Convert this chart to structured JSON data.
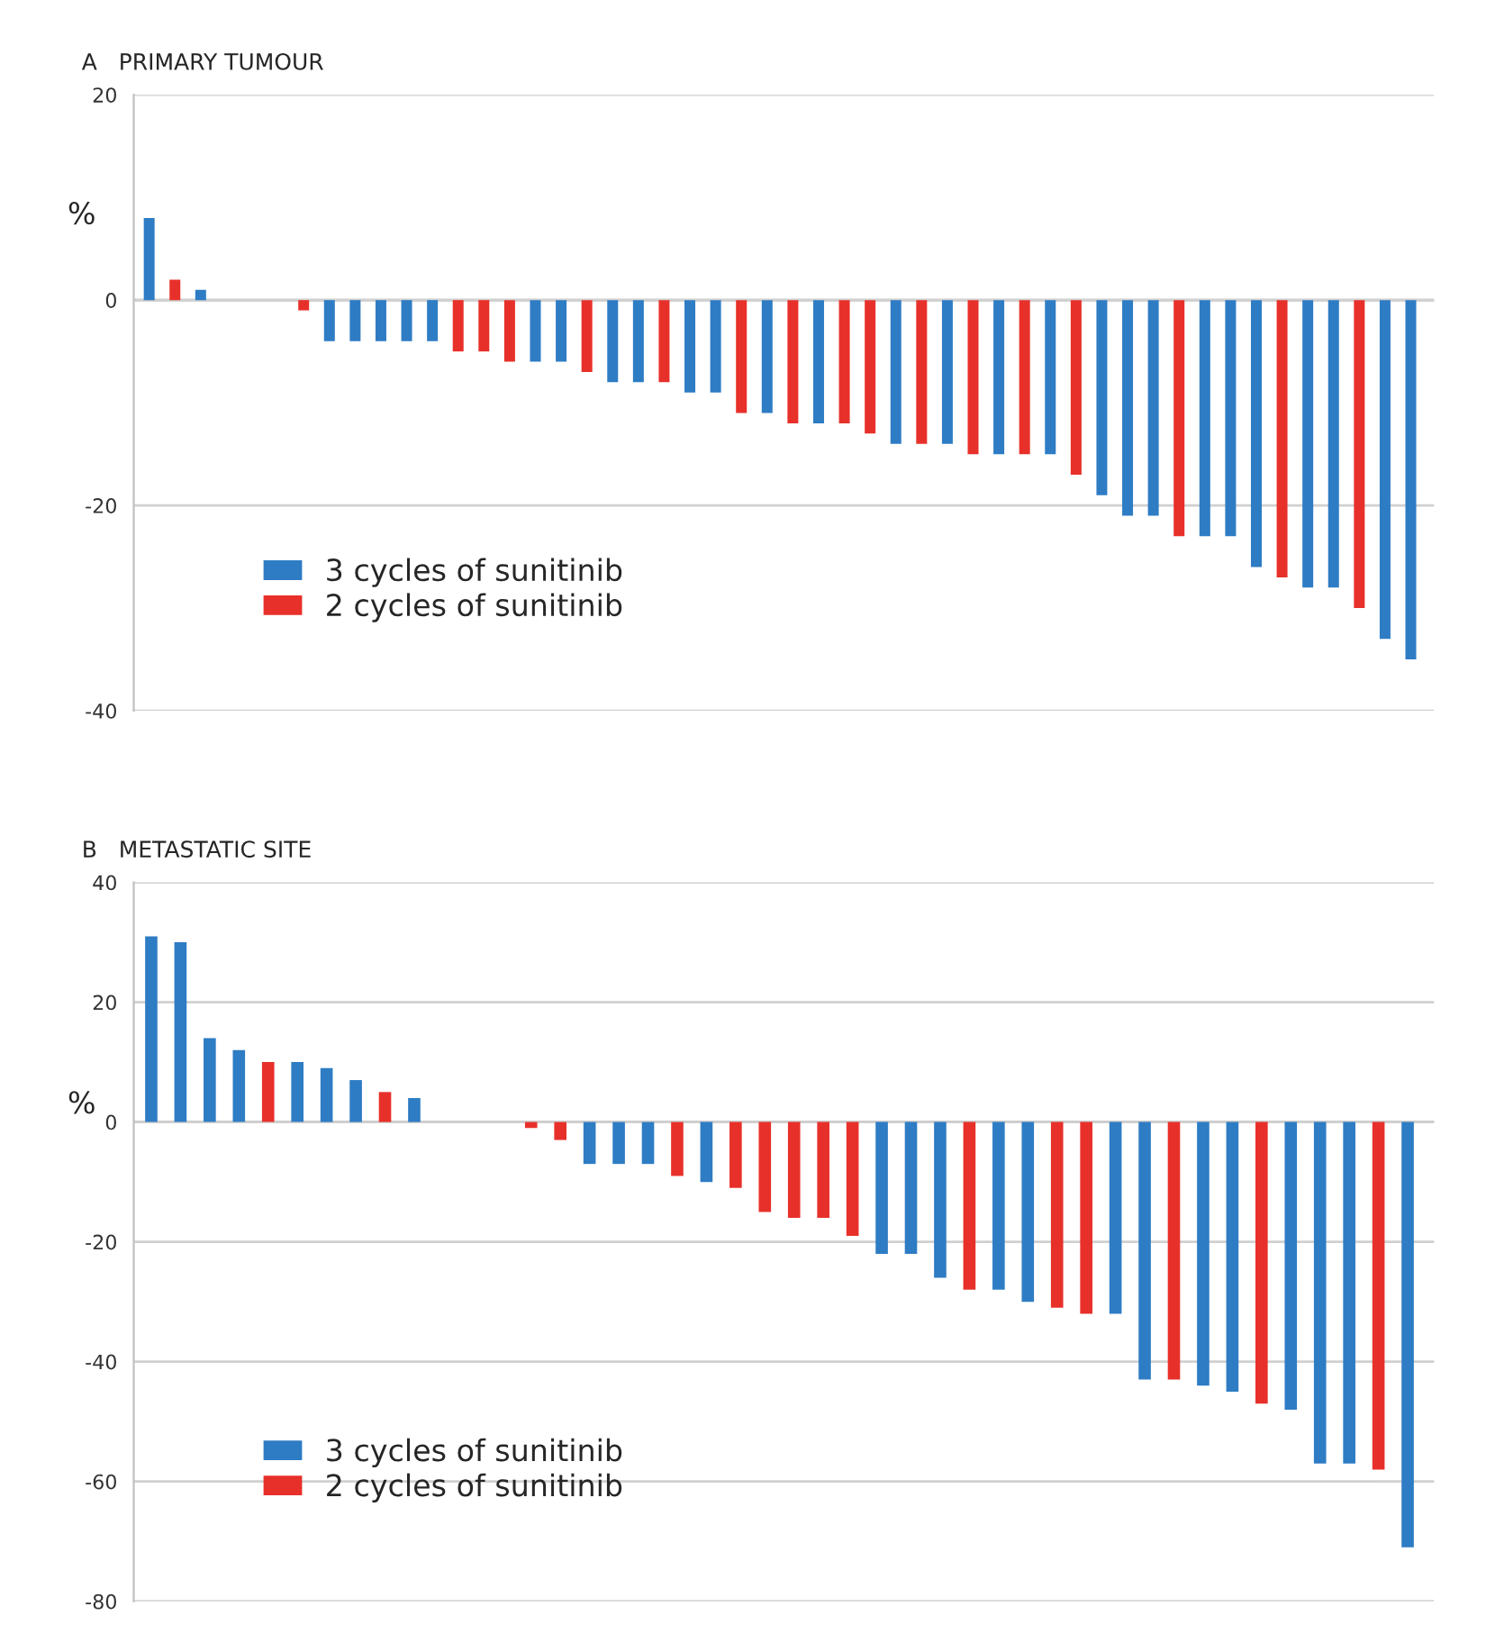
{
  "chart_data": [
    {
      "type": "bar",
      "title": "A   PRIMARY TUMOUR",
      "ylabel": "%",
      "categories": [
        null,
        null,
        null,
        null,
        null,
        null,
        null,
        null,
        null,
        null,
        null,
        null,
        null,
        null,
        null,
        null,
        null,
        null,
        null,
        null,
        null,
        null,
        null,
        null,
        null,
        null,
        null,
        null,
        null,
        null,
        null,
        null,
        null,
        null,
        null,
        null,
        null,
        null,
        null,
        null,
        null,
        null,
        null,
        null,
        null,
        null,
        null,
        null,
        null,
        null
      ],
      "series": [
        {
          "name": "3 cycles of sunitinib",
          "color": "#2e7cc4",
          "values": [
            8,
            null,
            1,
            null,
            null,
            null,
            null,
            -4,
            -4,
            -4,
            -4,
            -4,
            null,
            null,
            null,
            -6,
            -6,
            null,
            -8,
            -8,
            null,
            -9,
            -9,
            null,
            -11,
            null,
            -12,
            null,
            null,
            -14,
            null,
            -14,
            null,
            -15,
            null,
            -15,
            null,
            -19,
            -21,
            -21,
            null,
            -23,
            -23,
            -26,
            null,
            -28,
            -28,
            null,
            -33,
            -35
          ]
        },
        {
          "name": "2 cycles of sunitinib",
          "color": "#e8302a",
          "values": [
            null,
            2,
            null,
            null,
            null,
            null,
            -1,
            null,
            null,
            null,
            null,
            null,
            -5,
            -5,
            -6,
            null,
            null,
            -7,
            null,
            null,
            -8,
            null,
            null,
            -11,
            null,
            -12,
            null,
            -12,
            -13,
            null,
            -14,
            null,
            -15,
            null,
            -15,
            null,
            -17,
            null,
            null,
            null,
            -23,
            null,
            null,
            null,
            -27,
            null,
            null,
            -30,
            null,
            null
          ]
        }
      ],
      "ylim": [
        -40,
        20
      ],
      "yticks": [
        -40,
        -20,
        0,
        20
      ],
      "grid": "y",
      "legend": "bottom left",
      "tick_labels": "y"
    },
    {
      "type": "bar",
      "title": "B   METASTATIC SITE",
      "ylabel": "%",
      "categories": [
        null,
        null,
        null,
        null,
        null,
        null,
        null,
        null,
        null,
        null,
        null,
        null,
        null,
        null,
        null,
        null,
        null,
        null,
        null,
        null,
        null,
        null,
        null,
        null,
        null,
        null,
        null,
        null,
        null,
        null,
        null,
        null,
        null,
        null,
        null,
        null,
        null,
        null,
        null,
        null,
        null,
        null,
        null,
        null
      ],
      "series": [
        {
          "name": "3 cycles of sunitinib",
          "color": "#2e7cc4",
          "values": [
            31,
            30,
            14,
            12,
            null,
            10,
            9,
            7,
            null,
            4,
            null,
            null,
            null,
            null,
            null,
            -7,
            -7,
            -7,
            null,
            -10,
            null,
            null,
            null,
            null,
            null,
            -22,
            -22,
            -26,
            null,
            -28,
            -30,
            null,
            null,
            -32,
            -43,
            null,
            -44,
            -45,
            null,
            -48,
            -57,
            -57,
            null,
            -71
          ]
        },
        {
          "name": "2 cycles of sunitinib",
          "color": "#e8302a",
          "values": [
            null,
            null,
            null,
            null,
            10,
            null,
            null,
            null,
            5,
            null,
            null,
            null,
            null,
            -1,
            -3,
            null,
            null,
            null,
            -9,
            null,
            -11,
            -15,
            -16,
            -16,
            -19,
            null,
            null,
            null,
            -28,
            null,
            null,
            -31,
            -32,
            null,
            null,
            -43,
            null,
            null,
            -47,
            null,
            null,
            null,
            -58,
            null
          ]
        }
      ],
      "ylim": [
        -80,
        40
      ],
      "yticks": [
        -80,
        -60,
        -40,
        -20,
        0,
        20,
        40
      ],
      "grid": "y",
      "legend": "bottom left",
      "tick_labels": "y"
    }
  ]
}
